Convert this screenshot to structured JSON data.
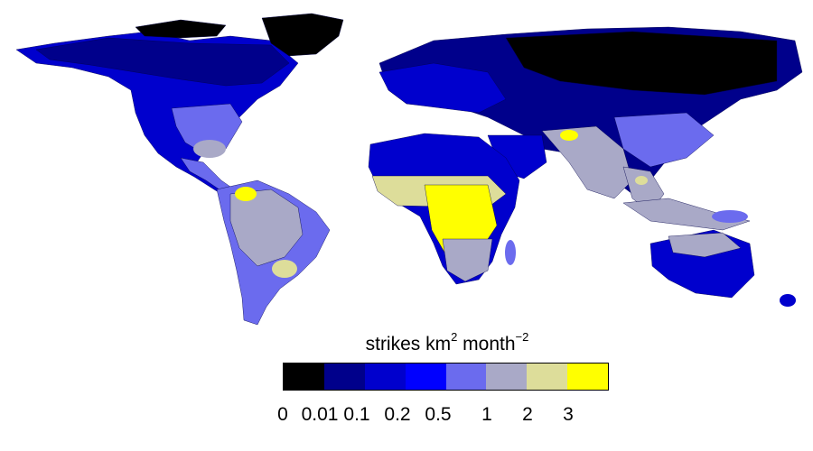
{
  "legend": {
    "title_main": "strikes km",
    "title_sup1": "2",
    "title_mid": " month",
    "title_sup2": "−2",
    "bins": [
      {
        "color": "#000000"
      },
      {
        "color": "#00008B"
      },
      {
        "color": "#0000CD"
      },
      {
        "color": "#0000FF"
      },
      {
        "color": "#6B6BEE"
      },
      {
        "color": "#A9A9C7"
      },
      {
        "color": "#DDDD9A"
      },
      {
        "color": "#FFFF00"
      }
    ],
    "tick_labels": [
      "0",
      "0.01",
      "0.1",
      "0.2",
      "0.5",
      "1",
      "2",
      "3"
    ]
  },
  "map": {
    "ocean_color": "#FFFFFF",
    "region_colors": {
      "polar_arctic": "#000000",
      "boreal": "#00008B",
      "temperate": "#0000CD",
      "moderate": "#0000FF",
      "active": "#6B6BEE",
      "high": "#A9A9C7",
      "very_high": "#DDDD9A",
      "extreme": "#FFFF00"
    }
  }
}
